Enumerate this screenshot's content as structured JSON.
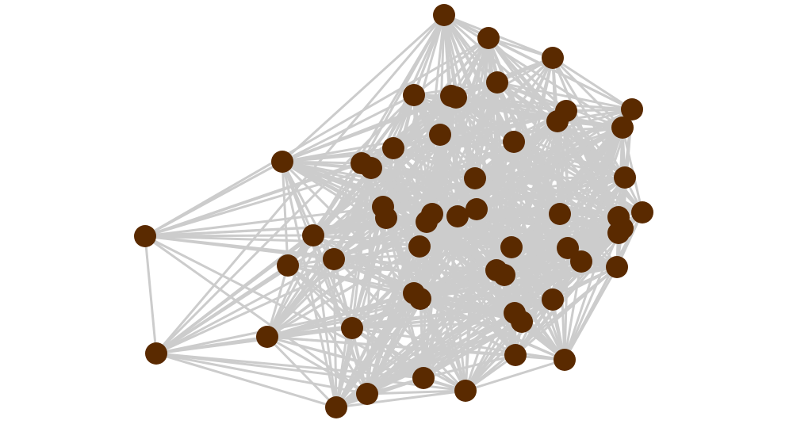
{
  "graph": {
    "node_count": 55,
    "node_color": "#5a2a00",
    "edge_color": "#cccccc",
    "directed": false,
    "labels_shown": false
  }
}
